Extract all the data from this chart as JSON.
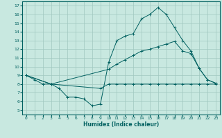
{
  "xlabel": "Humidex (Indice chaleur)",
  "background_color": "#c8e8e0",
  "grid_color": "#a0c8c0",
  "line_color": "#006060",
  "xlim": [
    -0.5,
    23.5
  ],
  "ylim": [
    4.5,
    17.5
  ],
  "xticks": [
    0,
    1,
    2,
    3,
    4,
    5,
    6,
    7,
    8,
    9,
    10,
    11,
    12,
    13,
    14,
    15,
    16,
    17,
    18,
    19,
    20,
    21,
    22,
    23
  ],
  "yticks": [
    5,
    6,
    7,
    8,
    9,
    10,
    11,
    12,
    13,
    14,
    15,
    16,
    17
  ],
  "line1_x": [
    0,
    1,
    2,
    3,
    4,
    5,
    6,
    7,
    8,
    9,
    10,
    11,
    12,
    13,
    14,
    15,
    16,
    17,
    18,
    19,
    20,
    21,
    22,
    23
  ],
  "line1_y": [
    9,
    8.5,
    8.0,
    8.0,
    7.5,
    6.5,
    6.5,
    6.3,
    5.5,
    5.7,
    10.5,
    13.0,
    13.5,
    13.8,
    15.5,
    16.0,
    16.8,
    16.0,
    14.5,
    13.0,
    11.8,
    9.8,
    8.5,
    8.1
  ],
  "line2_x": [
    0,
    3,
    10,
    11,
    12,
    13,
    14,
    15,
    16,
    17,
    18,
    19,
    20,
    21,
    22,
    23
  ],
  "line2_y": [
    9,
    8.0,
    9.7,
    10.3,
    10.8,
    11.3,
    11.8,
    12.0,
    12.3,
    12.6,
    12.9,
    11.8,
    11.5,
    9.8,
    8.5,
    8.1
  ],
  "line3_x": [
    0,
    3,
    9,
    10,
    11,
    12,
    13,
    14,
    15,
    16,
    17,
    18,
    19,
    20,
    21,
    22,
    23
  ],
  "line3_y": [
    9,
    8.0,
    7.5,
    8.0,
    8.0,
    8.0,
    8.0,
    8.0,
    8.0,
    8.0,
    8.0,
    8.0,
    8.0,
    8.0,
    8.0,
    8.0,
    8.0
  ]
}
